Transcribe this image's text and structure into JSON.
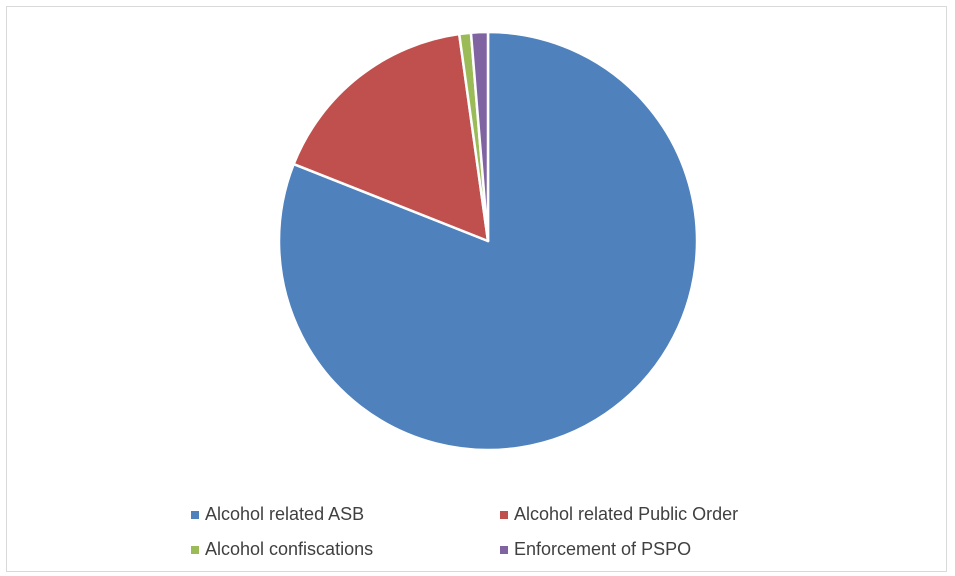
{
  "chart_data": {
    "type": "pie",
    "title": "",
    "legend_position": "bottom",
    "slices": [
      {
        "label": "Alcohol related ASB",
        "value": 81.0,
        "color": "#4f81bd"
      },
      {
        "label": "Alcohol related Public Order",
        "value": 16.8,
        "color": "#c0504d"
      },
      {
        "label": "Alcohol confiscations",
        "value": 0.9,
        "color": "#9bbb59"
      },
      {
        "label": "Enforcement of PSPO",
        "value": 1.3,
        "color": "#8064a2"
      }
    ]
  }
}
